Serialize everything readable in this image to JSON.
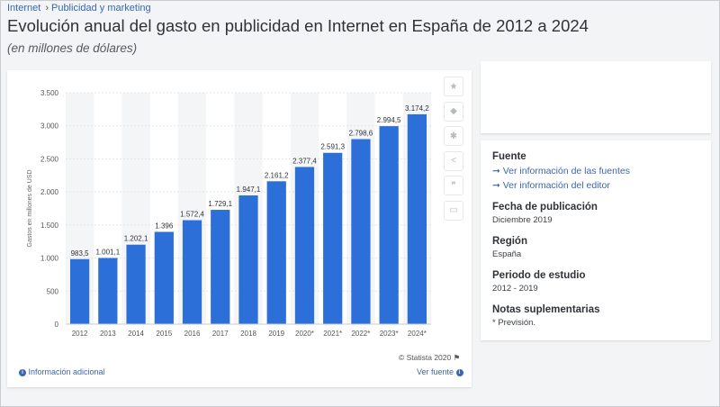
{
  "breadcrumb": [
    "Internet",
    "Publicidad y marketing"
  ],
  "title": "Evolución anual del gasto en publicidad en Internet en España de 2012 a 2024",
  "subtitle": "(en millones de dólares)",
  "colors": {
    "bar": "#2d6fd9",
    "accent": "#3a67b0",
    "stripe": "#f4f5f7"
  },
  "toolbar": [
    "star-icon",
    "bell-icon",
    "gear-icon",
    "share-icon",
    "quote-icon",
    "print-icon"
  ],
  "chart_data": {
    "type": "bar",
    "categories": [
      "2012",
      "2013",
      "2014",
      "2015",
      "2016",
      "2017",
      "2018",
      "2019",
      "2020*",
      "2021*",
      "2022*",
      "2023*",
      "2024*"
    ],
    "values": [
      983.5,
      1001.1,
      1202.1,
      1396,
      1572.4,
      1729.1,
      1947.1,
      2161.2,
      2377.4,
      2591.3,
      2798.6,
      2994.5,
      3174.2
    ],
    "data_labels": [
      "983,5",
      "1.001,1",
      "1.202,1",
      "1.396",
      "1.572,4",
      "1.729,1",
      "1.947,1",
      "2.161,2",
      "2.377,4",
      "2.591,3",
      "2.798,6",
      "2.994,5",
      "3.174,2"
    ],
    "ylabel": "Gastos en millones de USD",
    "ylim": [
      0,
      3500
    ],
    "yticks": [
      0,
      500,
      1000,
      1500,
      2000,
      2500,
      3000,
      3500
    ],
    "ytick_labels": [
      "0",
      "500",
      "1.000",
      "1.500",
      "2.000",
      "2.500",
      "3.000",
      "3.500"
    ],
    "grid": true
  },
  "credit": "© Statista 2020",
  "footer": {
    "info": "Información adicional",
    "source": "Ver fuente"
  },
  "side": {
    "fuente_h": "Fuente",
    "link1": "➞ Ver información de las fuentes",
    "link2": "➞ Ver información del editor",
    "fecha_h": "Fecha de publicación",
    "fecha_v": "Diciembre 2019",
    "region_h": "Región",
    "region_v": "España",
    "periodo_h": "Periodo de estudio",
    "periodo_v": "2012 - 2019",
    "notas_h": "Notas suplementarias",
    "notas_v": "* Previsión."
  }
}
